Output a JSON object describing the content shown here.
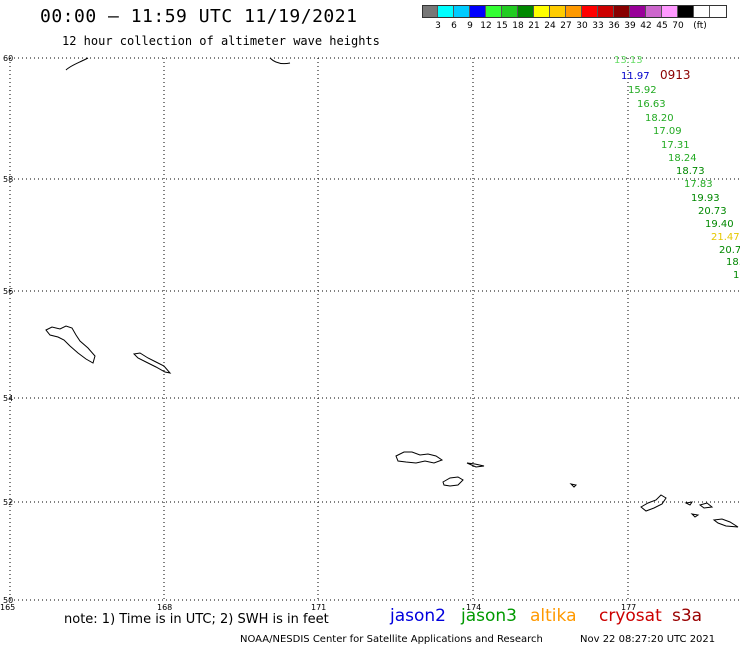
{
  "header": {
    "title": "00:00 – 11:59 UTC 11/19/2021",
    "subtitle": "12 hour collection of altimeter wave heights"
  },
  "colorbar": {
    "colors": [
      "#777777",
      "#00ffff",
      "#00ccff",
      "#0000ff",
      "#33ff33",
      "#22cc22",
      "#008800",
      "#ffff00",
      "#ffcc00",
      "#ff9900",
      "#ff0000",
      "#cc0000",
      "#880000",
      "#990099",
      "#cc66cc",
      "#ff99ff",
      "#000000",
      "#ffffff"
    ],
    "labels": [
      "3",
      "6",
      "9",
      "12",
      "15",
      "18",
      "21",
      "24",
      "27",
      "30",
      "33",
      "36",
      "39",
      "42",
      "45",
      "70",
      "(ft)"
    ]
  },
  "map": {
    "lat_labels": [
      "60",
      "58",
      "56",
      "54",
      "52",
      "50"
    ],
    "lon_labels": [
      "165",
      "168",
      "171",
      "174",
      "177"
    ],
    "track_label": "0913",
    "track_label_color": "#8b0000"
  },
  "chart_data": {
    "type": "scatter",
    "description_units": "significant wave height (ft)",
    "points": [
      {
        "value": "13.13",
        "color": "#66dd66"
      },
      {
        "value": "11.97",
        "color": "#0000cc"
      },
      {
        "value": "15.92",
        "color": "#22aa22"
      },
      {
        "value": "16.63",
        "color": "#22aa22"
      },
      {
        "value": "18.20",
        "color": "#22aa22"
      },
      {
        "value": "17.09",
        "color": "#22aa22"
      },
      {
        "value": "17.31",
        "color": "#22aa22"
      },
      {
        "value": "18.24",
        "color": "#22aa22"
      },
      {
        "value": "18.73",
        "color": "#008800"
      },
      {
        "value": "17.83",
        "color": "#22aa22"
      },
      {
        "value": "19.93",
        "color": "#008800"
      },
      {
        "value": "20.73",
        "color": "#008800"
      },
      {
        "value": "19.40",
        "color": "#008800"
      },
      {
        "value": "21.47",
        "color": "#e6c800"
      },
      {
        "value": "20.7",
        "color": "#008800"
      },
      {
        "value": "18.",
        "color": "#008800"
      },
      {
        "value": "1",
        "color": "#008800"
      }
    ]
  },
  "footer": {
    "note": "note: 1) Time is in UTC; 2) SWH is in feet",
    "satellites": [
      {
        "name": "jason2",
        "color": "#0000dd"
      },
      {
        "name": "jason3",
        "color": "#009900"
      },
      {
        "name": "altika",
        "color": "#ff9900"
      },
      {
        "name": "cryosat",
        "color": "#cc0000"
      },
      {
        "name": "s3a",
        "color": "#990000"
      }
    ],
    "credit": "NOAA/NESDIS Center for Satellite Applications and Research",
    "timestamp": "Nov 22 08:27:20 UTC 2021"
  }
}
